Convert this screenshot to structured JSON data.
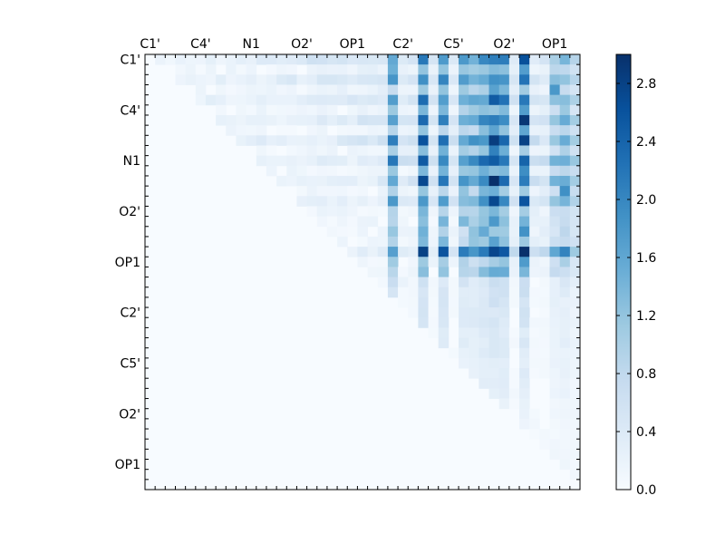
{
  "chart_data": {
    "type": "heatmap",
    "title": "",
    "xlabel": "",
    "ylabel": "",
    "n_rows": 43,
    "n_cols": 43,
    "x_tick_labels": [
      "C1'",
      "C4'",
      "N1",
      "O2'",
      "OP1",
      "C2'",
      "C5'",
      "O2'",
      "OP1"
    ],
    "x_tick_columns": [
      0,
      5,
      10,
      15,
      20,
      25,
      30,
      35,
      40
    ],
    "y_tick_labels": [
      "C1'",
      "C4'",
      "N1",
      "O2'",
      "OP1",
      "C2'",
      "C5'",
      "O2'",
      "OP1"
    ],
    "y_tick_rows": [
      0,
      5,
      10,
      15,
      20,
      25,
      30,
      35,
      40
    ],
    "triangle": "upper",
    "colorbar": {
      "min": 0.0,
      "max": 3.0,
      "ticks": [
        "0.0",
        "0.4",
        "0.8",
        "1.2",
        "1.6",
        "2.0",
        "2.4",
        "2.8"
      ],
      "tick_values": [
        0.0,
        0.4,
        0.8,
        1.2,
        1.6,
        2.0,
        2.4,
        2.8
      ],
      "colormap": "Blues",
      "colors": [
        "#f7fbff",
        "#deebf7",
        "#c6dbef",
        "#9ecae1",
        "#6baed6",
        "#4292c6",
        "#2171b5",
        "#08519c",
        "#08306b"
      ]
    },
    "hot_columns": [
      {
        "col": 24,
        "value": 1.55
      },
      {
        "col": 27,
        "value": 2.0
      },
      {
        "col": 29,
        "value": 1.7
      },
      {
        "col": 31,
        "value": 1.25
      },
      {
        "col": 32,
        "value": 1.25
      },
      {
        "col": 33,
        "value": 1.65
      },
      {
        "col": 34,
        "value": 2.1
      },
      {
        "col": 35,
        "value": 1.85
      },
      {
        "col": 37,
        "value": 2.05
      },
      {
        "col": 40,
        "value": 0.75
      },
      {
        "col": 41,
        "value": 1.0
      },
      {
        "col": 42,
        "value": 0.6
      }
    ],
    "hot_rows": [
      {
        "row": 0,
        "value": 1.0
      },
      {
        "row": 2,
        "value": 0.95
      },
      {
        "row": 4,
        "value": 1.05
      },
      {
        "row": 6,
        "value": 1.15
      },
      {
        "row": 8,
        "value": 1.45
      },
      {
        "row": 10,
        "value": 1.45
      },
      {
        "row": 12,
        "value": 1.25
      },
      {
        "row": 14,
        "value": 1.15
      },
      {
        "row": 19,
        "value": 1.75
      }
    ],
    "highlights": [
      {
        "row": 8,
        "col": 24,
        "value": 2.1
      },
      {
        "row": 8,
        "col": 34,
        "value": 2.85
      },
      {
        "row": 8,
        "col": 37,
        "value": 2.8
      },
      {
        "row": 10,
        "col": 34,
        "value": 2.5
      },
      {
        "row": 19,
        "col": 27,
        "value": 2.8
      },
      {
        "row": 19,
        "col": 29,
        "value": 2.6
      },
      {
        "row": 19,
        "col": 34,
        "value": 2.75
      },
      {
        "row": 19,
        "col": 37,
        "value": 3.0
      },
      {
        "row": 19,
        "col": 40,
        "value": 1.6
      },
      {
        "row": 19,
        "col": 41,
        "value": 2.05
      },
      {
        "row": 3,
        "col": 40,
        "value": 1.8
      },
      {
        "row": 13,
        "col": 41,
        "value": 1.9
      }
    ],
    "grid": false
  }
}
